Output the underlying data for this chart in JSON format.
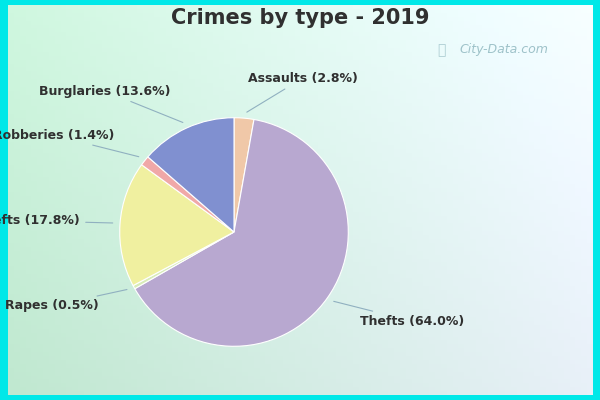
{
  "title": "Crimes by type - 2019",
  "ordered_slices": [
    {
      "label": "Assaults",
      "pct": 2.8,
      "color": "#f0c8a8"
    },
    {
      "label": "Thefts",
      "pct": 64.0,
      "color": "#b8a8d0"
    },
    {
      "label": "Rapes",
      "pct": 0.5,
      "color": "#d8ecb8"
    },
    {
      "label": "Auto thefts",
      "pct": 17.8,
      "color": "#f0f0a0"
    },
    {
      "label": "Robberies",
      "pct": 1.4,
      "color": "#f0a8a8"
    },
    {
      "label": "Burglaries",
      "pct": 13.6,
      "color": "#8090d0"
    }
  ],
  "cyan_bg": "#00e8e8",
  "inner_bg_left": "#c0e8d0",
  "inner_bg_right": "#e8f0f8",
  "title_color": "#303030",
  "title_fontsize": 15,
  "label_fontsize": 9,
  "watermark_text": "City-Data.com",
  "watermark_color": "#90b8c0",
  "label_color": "#303030",
  "line_color": "#90b0c0",
  "wedge_edge_color": "white",
  "wedge_linewidth": 0.8
}
